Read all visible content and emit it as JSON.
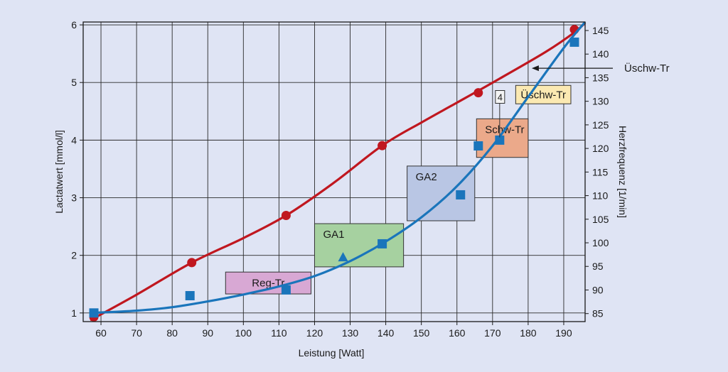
{
  "chart_data": {
    "type": "line",
    "background": "#dfe4f4",
    "x": {
      "label": "Leistung [Watt]",
      "range": [
        55,
        196
      ],
      "ticks": [
        60,
        70,
        80,
        90,
        100,
        110,
        120,
        130,
        140,
        150,
        160,
        170,
        180,
        190
      ]
    },
    "y_left": {
      "label": "Lactatwert [mmol/l]",
      "range": [
        0.85,
        6.05
      ],
      "ticks": [
        1,
        2,
        3,
        4,
        5,
        6
      ]
    },
    "y_right": {
      "label": "Herzfrequenz [1/min]",
      "range": [
        83.3,
        146.8
      ],
      "ticks": [
        85,
        90,
        95,
        100,
        105,
        110,
        115,
        120,
        125,
        130,
        135,
        140,
        145
      ]
    },
    "grid": true,
    "series": [
      {
        "name": "Herzfrequenz",
        "axis": "right",
        "color": "#c0171f",
        "marker": "circle",
        "curve": [
          [
            57,
            83.6
          ],
          [
            70,
            89
          ],
          [
            85.5,
            95.8
          ],
          [
            100,
            101
          ],
          [
            112,
            105.8
          ],
          [
            125,
            112.5
          ],
          [
            139,
            120.6
          ],
          [
            150,
            125.5
          ],
          [
            160,
            129.7
          ],
          [
            172,
            134.8
          ],
          [
            185,
            140.5
          ],
          [
            193,
            144.6
          ],
          [
            196,
            146.6
          ]
        ],
        "points": [
          [
            58,
            84.3
          ],
          [
            85.5,
            95.8
          ],
          [
            112,
            105.8
          ],
          [
            139,
            120.6
          ],
          [
            166,
            131.8
          ],
          [
            193,
            145.2
          ]
        ]
      },
      {
        "name": "Lactatwert",
        "axis": "left",
        "color": "#1a75bb",
        "marker": "square",
        "curve": [
          [
            57,
            1.0
          ],
          [
            70,
            1.04
          ],
          [
            80,
            1.1
          ],
          [
            90,
            1.2
          ],
          [
            100,
            1.32
          ],
          [
            110,
            1.46
          ],
          [
            120,
            1.64
          ],
          [
            130,
            1.9
          ],
          [
            140,
            2.24
          ],
          [
            150,
            2.66
          ],
          [
            160,
            3.2
          ],
          [
            170,
            3.9
          ],
          [
            180,
            4.75
          ],
          [
            190,
            5.6
          ],
          [
            196,
            6.05
          ]
        ],
        "points": [
          [
            58,
            1.0
          ],
          [
            85,
            1.3
          ],
          [
            112,
            1.4
          ],
          [
            139,
            2.2
          ],
          [
            161,
            3.05
          ],
          [
            166,
            3.9
          ],
          [
            172,
            4.0
          ],
          [
            193,
            5.7
          ]
        ],
        "extra_points": [
          {
            "x": 128,
            "y": 1.97,
            "marker": "triangle"
          }
        ]
      }
    ],
    "zones": [
      {
        "label": "Reg-Tr",
        "x0": 95,
        "x1": 119,
        "y0": 1.33,
        "y1": 1.71,
        "color": "#d8a8d4"
      },
      {
        "label": "GA1",
        "x0": 120,
        "x1": 145,
        "y0": 1.8,
        "y1": 2.55,
        "color": "#a6d1a0"
      },
      {
        "label": "GA2",
        "x0": 146,
        "x1": 165,
        "y0": 2.6,
        "y1": 3.55,
        "color": "#b9c6e4"
      },
      {
        "label": "Schw-Tr",
        "x0": 165.5,
        "x1": 180,
        "y0": 3.7,
        "y1": 4.37,
        "color": "#eba98a"
      },
      {
        "label": "Üschw-Tr",
        "x0": 176.5,
        "x1": 192,
        "y0": 4.63,
        "y1": 4.95,
        "color": "#fbe9b2"
      }
    ],
    "annotations": [
      {
        "label": "4",
        "x": 172,
        "y": 4.75,
        "type": "box"
      },
      {
        "label": "Üschw-Tr",
        "type": "arrow_label",
        "hr": 137
      }
    ]
  }
}
